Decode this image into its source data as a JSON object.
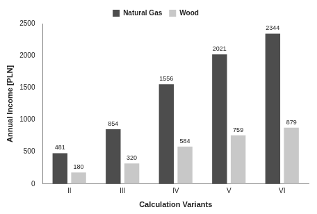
{
  "chart_data": {
    "type": "bar",
    "x_label": "Calculation Variants",
    "y_label": "Annual Income [PLN]",
    "categories": [
      "II",
      "III",
      "IV",
      "V",
      "VI"
    ],
    "series": [
      {
        "name": "Natural Gas",
        "color": "#4d4d4d",
        "values": [
          481,
          854,
          1556,
          2021,
          2344
        ]
      },
      {
        "name": "Wood",
        "color": "#c8c8c8",
        "values": [
          180,
          320,
          584,
          759,
          879
        ]
      }
    ],
    "ylim": [
      0,
      2500
    ],
    "yticks": [
      0,
      500,
      1000,
      1500,
      2000,
      2500
    ],
    "grid": false,
    "legend": "top",
    "data_labels": true
  }
}
